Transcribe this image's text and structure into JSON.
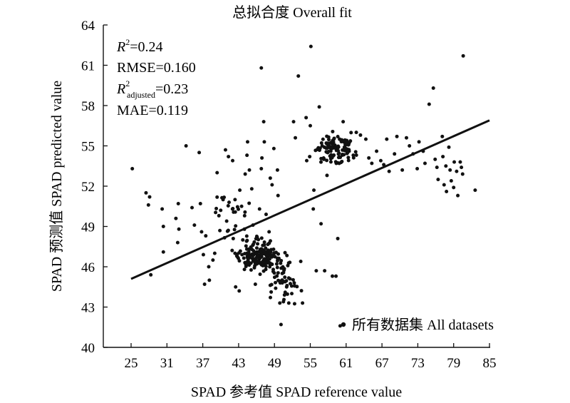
{
  "chart_data": {
    "type": "scatter",
    "title": "总拟合度 Overall fit",
    "xlabel": "SPAD 参考值 SPAD reference value",
    "ylabel": "SPAD 预测值 SPAD predicted value",
    "xlim": [
      22,
      85
    ],
    "ylim": [
      40,
      64
    ],
    "x_ticks": [
      25,
      31,
      37,
      43,
      49,
      55,
      61,
      67,
      73,
      79,
      85
    ],
    "y_ticks": [
      40,
      43,
      46,
      49,
      52,
      55,
      58,
      61,
      64
    ],
    "grid": false,
    "legend": {
      "label": "所有数据集 All datasets",
      "placement": "bottom-right"
    },
    "stats": {
      "r2_label": "R",
      "r2_sup": "2",
      "r2_value": "=0.24",
      "rmse": "RMSE=0.160",
      "radj_label": "R",
      "radj_sup": "2",
      "radj_sub": "adjusted",
      "radj_value": "=0.23",
      "mae": "MAE=0.119"
    },
    "fit_line": {
      "x": [
        25,
        85
      ],
      "y": [
        45.1,
        56.9
      ]
    },
    "series": [
      {
        "points": [
          [
            25.2,
            53.3
          ],
          [
            27.5,
            51.5
          ],
          [
            27.9,
            50.6
          ],
          [
            28.1,
            51.2
          ],
          [
            28.3,
            45.4
          ],
          [
            30.2,
            50.3
          ],
          [
            30.4,
            49.0
          ],
          [
            30.4,
            47.1
          ],
          [
            32.5,
            49.6
          ],
          [
            32.9,
            50.7
          ],
          [
            33.0,
            48.8
          ],
          [
            32.8,
            47.8
          ],
          [
            34.2,
            55.0
          ],
          [
            35.2,
            50.4
          ],
          [
            35.6,
            49.1
          ],
          [
            36.6,
            50.7
          ],
          [
            36.4,
            54.5
          ],
          [
            36.8,
            48.6
          ],
          [
            37.1,
            46.9
          ],
          [
            37.3,
            44.7
          ],
          [
            37.5,
            48.3
          ],
          [
            38.1,
            45.0
          ],
          [
            38.0,
            46.0
          ],
          [
            38.7,
            46.5
          ],
          [
            39.0,
            47.0
          ],
          [
            39.4,
            53.0
          ],
          [
            39.7,
            49.8
          ],
          [
            40.0,
            50.2
          ],
          [
            40.4,
            51.0
          ],
          [
            40.8,
            54.7
          ],
          [
            41.3,
            54.2
          ],
          [
            41.0,
            49.4
          ],
          [
            41.4,
            50.8
          ],
          [
            42.0,
            53.9
          ],
          [
            42.4,
            51.0
          ],
          [
            42.1,
            48.1
          ],
          [
            42.4,
            47.0
          ],
          [
            42.7,
            46.8
          ],
          [
            42.5,
            44.5
          ],
          [
            43.1,
            44.2
          ],
          [
            43.2,
            51.7
          ],
          [
            43.5,
            50.5
          ],
          [
            43.7,
            48.0
          ],
          [
            44.0,
            49.8
          ],
          [
            44.1,
            52.9
          ],
          [
            44.4,
            54.3
          ],
          [
            44.5,
            55.3
          ],
          [
            44.8,
            53.2
          ],
          [
            45.2,
            51.8
          ],
          [
            45.4,
            49.1
          ],
          [
            45.8,
            44.7
          ],
          [
            46.1,
            48.2
          ],
          [
            46.5,
            50.3
          ],
          [
            46.8,
            53.3
          ],
          [
            46.9,
            54.1
          ],
          [
            47.3,
            55.3
          ],
          [
            47.2,
            56.8
          ],
          [
            46.8,
            60.8
          ],
          [
            47.6,
            49.9
          ],
          [
            48.1,
            48.6
          ],
          [
            48.3,
            52.6
          ],
          [
            48.6,
            52.1
          ],
          [
            48.9,
            54.8
          ],
          [
            48.8,
            45.8
          ],
          [
            49.2,
            44.4
          ],
          [
            49.5,
            53.2
          ],
          [
            49.6,
            51.3
          ],
          [
            49.9,
            43.3
          ],
          [
            50.1,
            41.7
          ],
          [
            50.3,
            45.5
          ],
          [
            50.5,
            43.4
          ],
          [
            50.8,
            44.1
          ],
          [
            51.1,
            44.6
          ],
          [
            51.4,
            43.3
          ],
          [
            51.6,
            45.1
          ],
          [
            51.9,
            44.0
          ],
          [
            52.2,
            56.8
          ],
          [
            52.5,
            55.6
          ],
          [
            53.0,
            60.2
          ],
          [
            53.4,
            46.4
          ],
          [
            53.7,
            43.3
          ],
          [
            54.3,
            57.1
          ],
          [
            54.4,
            53.9
          ],
          [
            54.9,
            54.2
          ],
          [
            55.1,
            62.4
          ],
          [
            55.0,
            56.5
          ],
          [
            55.5,
            50.3
          ],
          [
            55.6,
            51.7
          ],
          [
            56.0,
            45.7
          ],
          [
            56.5,
            57.9
          ],
          [
            56.8,
            49.2
          ],
          [
            57.4,
            45.7
          ],
          [
            57.8,
            52.8
          ],
          [
            58.7,
            45.3
          ],
          [
            59.3,
            45.3
          ],
          [
            59.6,
            48.1
          ],
          [
            60.0,
            41.6
          ],
          [
            60.5,
            56.8
          ],
          [
            61.1,
            55.4
          ],
          [
            61.5,
            54.6
          ],
          [
            62.2,
            54.3
          ],
          [
            62.7,
            56.0
          ],
          [
            63.4,
            55.8
          ],
          [
            64.3,
            55.5
          ],
          [
            64.8,
            54.1
          ],
          [
            65.3,
            53.7
          ],
          [
            66.1,
            54.6
          ],
          [
            66.8,
            53.9
          ],
          [
            67.3,
            53.6
          ],
          [
            67.8,
            55.5
          ],
          [
            68.2,
            53.1
          ],
          [
            69.1,
            54.4
          ],
          [
            69.5,
            55.7
          ],
          [
            70.4,
            53.2
          ],
          [
            71.1,
            55.6
          ],
          [
            71.6,
            55.0
          ],
          [
            72.2,
            54.4
          ],
          [
            72.9,
            53.3
          ],
          [
            73.2,
            55.3
          ],
          [
            73.9,
            54.6
          ],
          [
            74.2,
            53.7
          ],
          [
            74.9,
            58.1
          ],
          [
            75.6,
            59.3
          ],
          [
            75.9,
            54.0
          ],
          [
            76.2,
            53.4
          ],
          [
            76.4,
            52.5
          ],
          [
            77.1,
            55.7
          ],
          [
            77.2,
            54.2
          ],
          [
            77.7,
            53.5
          ],
          [
            77.4,
            52.1
          ],
          [
            77.8,
            51.6
          ],
          [
            78.2,
            54.9
          ],
          [
            78.4,
            53.2
          ],
          [
            78.6,
            52.4
          ],
          [
            79.1,
            53.8
          ],
          [
            79.0,
            51.9
          ],
          [
            79.5,
            53.1
          ],
          [
            79.7,
            51.3
          ],
          [
            80.1,
            53.8
          ],
          [
            80.3,
            53.4
          ],
          [
            80.5,
            52.9
          ],
          [
            80.6,
            61.7
          ],
          [
            82.6,
            51.7
          ]
        ]
      }
    ]
  }
}
